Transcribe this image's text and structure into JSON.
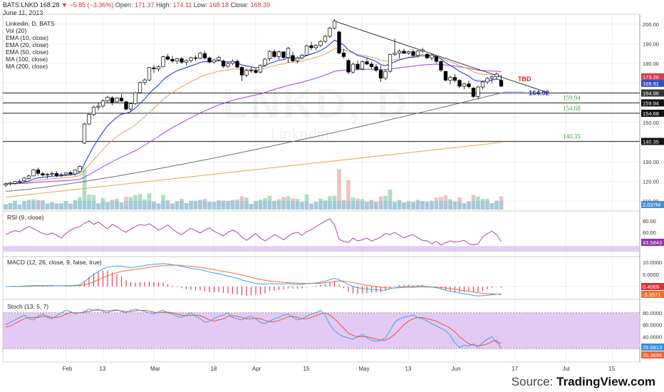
{
  "header": {
    "symbol": "BATS:LNKD",
    "last": "168.28",
    "change": "−5.85 (−3.36%)",
    "open_label": "Open:",
    "open": "171.37",
    "high_label": "High:",
    "high": "174.11",
    "low_label": "Low:",
    "low": "168.18",
    "close_label": "Close:",
    "close": "168.39",
    "date": "June 11, 2013"
  },
  "legend": [
    "Linkedin, D, BATS",
    "Vol (20)",
    "EMA (10, close)",
    "EMA (20, close)",
    "EMA (50, close)",
    "MA (100, close)",
    "MA (200, close)"
  ],
  "watermark": {
    "main": "LNKD, D",
    "sub": "Linkedin"
  },
  "panes": {
    "rsi_title": "RSI (9, close)",
    "macd_title": "MACD (12, 26, close, 9, false, true)",
    "stoch_title": "Stoch (13, 5, 7)"
  },
  "source": {
    "prefix": "Source:",
    "brand": "TradingView.com"
  },
  "colors": {
    "up": "#ffffff",
    "down": "#000000",
    "ema10": "#2040d0",
    "ema20": "#e0a060",
    "ema50": "#a040e0",
    "ma100": "#707070",
    "ma200": "#d8a850",
    "rsi": "#a030a0",
    "macd": "#40a0e0",
    "signal": "#f07040",
    "hist": "#e04060",
    "stoch_k": "#40a0e0",
    "stoch_d": "#f05030",
    "band": "#d8b8f0",
    "tbd": "#e02020"
  },
  "chart_data": {
    "type": "candlestick",
    "x_ticks": [
      "Feb",
      "13",
      "Mar",
      "18",
      "Apr",
      "15",
      "May",
      "13",
      "Jun",
      "17",
      "Jul",
      "15"
    ],
    "price_axis": {
      "ticks": [
        110,
        120,
        130,
        140,
        150,
        160,
        170,
        180,
        190,
        200
      ],
      "range": [
        105,
        205
      ]
    },
    "price_tags": [
      "173.20",
      "169.91",
      "164.96",
      "159.94",
      "154.68",
      "140.35"
    ],
    "horizontal_levels": [
      {
        "value": 164.96,
        "label": ""
      },
      {
        "value": 159.94,
        "label": "159.94"
      },
      {
        "value": 154.68,
        "label": "154.68"
      },
      {
        "value": 140.35,
        "label": "140.35"
      }
    ],
    "target": {
      "value": 164.92,
      "label": "164.92"
    },
    "annotation": "TBD",
    "trendline": [
      201.5,
      165.0
    ],
    "ohlc": [
      [
        118.2,
        119.5,
        117.1,
        118.8
      ],
      [
        118.8,
        119.8,
        117.9,
        119.2
      ],
      [
        119.0,
        120.3,
        118.5,
        119.9
      ],
      [
        119.9,
        121.0,
        119.0,
        120.1
      ],
      [
        120.3,
        122.2,
        119.8,
        121.7
      ],
      [
        121.5,
        123.5,
        121.0,
        122.8
      ],
      [
        122.8,
        126.4,
        122.6,
        125.9
      ],
      [
        125.9,
        127.0,
        123.1,
        124.1
      ],
      [
        124.0,
        125.0,
        122.5,
        123.2
      ],
      [
        123.3,
        124.3,
        121.5,
        123.7
      ],
      [
        123.8,
        125.0,
        122.8,
        124.1
      ],
      [
        124.1,
        125.2,
        122.2,
        123.0
      ],
      [
        123.2,
        124.4,
        122.3,
        123.5
      ],
      [
        123.5,
        124.6,
        122.8,
        124.3
      ],
      [
        124.5,
        125.5,
        123.2,
        123.8
      ],
      [
        123.8,
        126.1,
        123.0,
        125.8
      ],
      [
        125.0,
        128.3,
        124.5,
        127.7
      ],
      [
        139.5,
        149.8,
        139.0,
        149.2
      ],
      [
        149.2,
        154.6,
        148.6,
        154.1
      ],
      [
        154.0,
        158.5,
        153.0,
        157.8
      ],
      [
        157.8,
        160.3,
        156.2,
        158.3
      ],
      [
        158.3,
        161.8,
        157.6,
        161.0
      ],
      [
        161.0,
        163.6,
        160.0,
        162.9
      ],
      [
        162.5,
        163.4,
        158.7,
        160.1
      ],
      [
        160.5,
        162.9,
        159.9,
        162.5
      ],
      [
        162.4,
        164.4,
        160.5,
        160.9
      ],
      [
        160.5,
        161.0,
        156.1,
        156.8
      ],
      [
        156.8,
        160.2,
        155.8,
        159.6
      ],
      [
        159.6,
        165.6,
        159.0,
        165.1
      ],
      [
        165.1,
        170.9,
        164.5,
        170.3
      ],
      [
        170.3,
        172.5,
        169.0,
        171.6
      ],
      [
        171.6,
        178.2,
        171.0,
        177.9
      ],
      [
        177.8,
        179.2,
        175.2,
        177.2
      ],
      [
        177.2,
        179.0,
        175.9,
        178.3
      ],
      [
        178.3,
        184.0,
        178.0,
        183.4
      ],
      [
        183.4,
        184.9,
        181.6,
        182.1
      ],
      [
        182.1,
        183.8,
        180.2,
        181.2
      ],
      [
        181.2,
        182.9,
        179.7,
        182.4
      ],
      [
        182.4,
        183.2,
        179.8,
        180.6
      ],
      [
        180.6,
        182.1,
        179.0,
        181.5
      ],
      [
        181.5,
        183.4,
        180.4,
        182.9
      ],
      [
        182.9,
        184.1,
        181.4,
        182.6
      ],
      [
        182.6,
        185.8,
        182.1,
        185.2
      ],
      [
        185.0,
        186.4,
        182.0,
        182.8
      ],
      [
        182.8,
        183.5,
        180.0,
        180.7
      ],
      [
        180.7,
        182.4,
        179.8,
        181.8
      ],
      [
        181.8,
        183.9,
        181.1,
        183.1
      ],
      [
        181.2,
        182.0,
        177.8,
        178.6
      ],
      [
        178.6,
        180.6,
        177.6,
        180.0
      ],
      [
        180.0,
        182.0,
        179.1,
        181.1
      ],
      [
        181.1,
        182.1,
        177.6,
        178.1
      ],
      [
        178.0,
        178.6,
        171.0,
        174.1
      ],
      [
        174.1,
        177.2,
        173.0,
        176.4
      ],
      [
        176.4,
        178.1,
        175.3,
        176.6
      ],
      [
        176.4,
        177.8,
        174.6,
        175.4
      ],
      [
        175.6,
        179.5,
        175.0,
        179.0
      ],
      [
        179.0,
        182.8,
        178.3,
        182.2
      ],
      [
        182.4,
        186.8,
        181.1,
        186.1
      ],
      [
        186.0,
        187.2,
        182.8,
        183.5
      ],
      [
        183.5,
        186.5,
        182.0,
        185.9
      ],
      [
        185.9,
        186.1,
        182.2,
        183.0
      ],
      [
        183.0,
        188.4,
        180.4,
        187.8
      ],
      [
        184.0,
        185.9,
        180.6,
        181.3
      ],
      [
        181.3,
        183.6,
        180.0,
        182.8
      ],
      [
        182.8,
        184.8,
        182.0,
        184.2
      ],
      [
        184.2,
        189.6,
        183.7,
        189.0
      ],
      [
        189.0,
        191.0,
        186.7,
        188.0
      ],
      [
        188.0,
        189.7,
        186.7,
        189.1
      ],
      [
        189.1,
        191.8,
        188.2,
        191.2
      ],
      [
        191.2,
        194.4,
        190.5,
        193.8
      ],
      [
        193.8,
        198.6,
        193.0,
        198.0
      ],
      [
        198.0,
        202.4,
        197.1,
        201.5
      ],
      [
        196.0,
        196.7,
        184.6,
        185.3
      ],
      [
        185.3,
        187.4,
        182.4,
        183.5
      ],
      [
        181.5,
        182.5,
        174.6,
        175.6
      ],
      [
        175.6,
        180.5,
        174.8,
        179.6
      ],
      [
        179.6,
        181.4,
        176.5,
        177.2
      ],
      [
        177.2,
        181.5,
        176.5,
        180.9
      ],
      [
        180.9,
        182.9,
        179.0,
        179.7
      ],
      [
        179.7,
        180.8,
        177.0,
        178.3
      ],
      [
        178.3,
        179.7,
        175.5,
        176.5
      ],
      [
        176.5,
        179.0,
        170.5,
        172.5
      ],
      [
        172.5,
        176.8,
        171.5,
        176.0
      ],
      [
        176.0,
        185.0,
        175.4,
        184.6
      ],
      [
        184.6,
        192.6,
        183.8,
        185.2
      ],
      [
        185.2,
        187.0,
        182.6,
        186.2
      ],
      [
        186.2,
        187.5,
        184.8,
        185.2
      ],
      [
        185.2,
        186.4,
        184.4,
        186.0
      ],
      [
        186.0,
        187.2,
        183.4,
        184.0
      ],
      [
        184.0,
        186.8,
        183.2,
        186.3
      ],
      [
        186.3,
        188.0,
        185.2,
        186.9
      ],
      [
        184.6,
        185.3,
        182.4,
        182.8
      ],
      [
        182.8,
        185.0,
        181.5,
        184.3
      ],
      [
        183.5,
        183.9,
        180.2,
        181.0
      ],
      [
        181.0,
        181.5,
        175.6,
        176.6
      ],
      [
        176.0,
        176.2,
        170.8,
        171.5
      ],
      [
        171.5,
        173.6,
        169.4,
        172.9
      ],
      [
        172.9,
        174.6,
        170.5,
        171.4
      ],
      [
        171.4,
        172.1,
        167.5,
        168.4
      ],
      [
        168.4,
        170.0,
        166.9,
        169.6
      ],
      [
        169.6,
        171.2,
        167.2,
        168.2
      ],
      [
        167.5,
        167.9,
        162.4,
        163.2
      ],
      [
        163.2,
        168.7,
        161.8,
        168.0
      ],
      [
        168.0,
        171.0,
        166.8,
        170.6
      ],
      [
        170.6,
        173.0,
        169.4,
        172.4
      ],
      [
        172.4,
        173.8,
        170.1,
        173.2
      ],
      [
        173.2,
        175.4,
        171.8,
        174.6
      ],
      [
        171.37,
        174.11,
        168.18,
        168.39
      ]
    ],
    "volume_axis": {
      "tag": "2.037M"
    },
    "rsi": {
      "axis_ticks": [
        80,
        60
      ],
      "tag": "43.5843",
      "band": [
        30,
        70
      ],
      "values": [
        56,
        60,
        63,
        61,
        66,
        70,
        67,
        62,
        58,
        56,
        59,
        55,
        50,
        58,
        64,
        68,
        70,
        76,
        80,
        74,
        78,
        72,
        66,
        74,
        70,
        64,
        60,
        66,
        70,
        74,
        72,
        75,
        70,
        64,
        68,
        73,
        66,
        60,
        56,
        62,
        67,
        63,
        59,
        64,
        68,
        62,
        58,
        54,
        60,
        64,
        60,
        52,
        46,
        52,
        58,
        50,
        45,
        50,
        56,
        52,
        47,
        53,
        58,
        60,
        55,
        61,
        65,
        70,
        75,
        80,
        84,
        73,
        48,
        44,
        42,
        50,
        45,
        47,
        50,
        45,
        48,
        52,
        58,
        56,
        60,
        55,
        50,
        54,
        56,
        50,
        46,
        45,
        40,
        44,
        38,
        42,
        45,
        43,
        44,
        46,
        40,
        38,
        40,
        52,
        58,
        62,
        56,
        44
      ]
    },
    "macd": {
      "axis_ticks": [
        10.0,
        5.0
      ],
      "tags": [
        "0.4069",
        "-3.3571"
      ],
      "macd": [
        0.0,
        0.0,
        0.1,
        0.1,
        0.2,
        0.3,
        0.4,
        0.4,
        0.4,
        0.4,
        0.4,
        0.3,
        0.3,
        0.4,
        0.4,
        0.5,
        0.7,
        2.0,
        3.5,
        5.0,
        6.2,
        7.2,
        8.0,
        8.3,
        8.5,
        8.4,
        8.0,
        7.8,
        8.0,
        8.3,
        8.6,
        9.0,
        9.2,
        9.3,
        9.5,
        9.3,
        9.0,
        8.7,
        8.3,
        7.9,
        7.6,
        7.2,
        7.0,
        6.5,
        6.0,
        5.6,
        5.3,
        4.8,
        4.3,
        3.9,
        3.4,
        2.7,
        2.2,
        1.8,
        1.3,
        1.1,
        1.0,
        1.2,
        1.1,
        1.1,
        1.0,
        1.2,
        1.0,
        0.9,
        0.9,
        1.2,
        1.3,
        1.5,
        1.8,
        2.2,
        2.8,
        3.4,
        2.8,
        1.8,
        0.8,
        0.0,
        -0.5,
        -0.8,
        -1.0,
        -1.2,
        -1.3,
        -1.6,
        -1.5,
        -0.9,
        -0.5,
        -0.2,
        0.0,
        0.1,
        0.0,
        0.1,
        0.2,
        -0.1,
        -0.2,
        -0.5,
        -1.0,
        -1.5,
        -2.0,
        -2.3,
        -2.7,
        -3.0,
        -3.2,
        -3.7,
        -3.9,
        -3.8,
        -3.6,
        -3.4,
        -3.1,
        -3.36
      ],
      "signal": [
        0.0,
        0.0,
        0.0,
        0.0,
        0.1,
        0.1,
        0.2,
        0.2,
        0.3,
        0.3,
        0.3,
        0.3,
        0.3,
        0.3,
        0.3,
        0.4,
        0.4,
        0.7,
        1.2,
        1.9,
        2.8,
        3.6,
        4.4,
        5.1,
        5.7,
        6.2,
        6.6,
        6.8,
        7.1,
        7.3,
        7.6,
        7.9,
        8.2,
        8.4,
        8.6,
        8.8,
        8.8,
        8.8,
        8.7,
        8.5,
        8.4,
        8.1,
        7.9,
        7.6,
        7.3,
        7.0,
        6.6,
        6.3,
        5.9,
        5.6,
        5.2,
        4.7,
        4.3,
        3.8,
        3.3,
        2.9,
        2.6,
        2.3,
        2.1,
        1.9,
        1.7,
        1.6,
        1.5,
        1.4,
        1.3,
        1.3,
        1.3,
        1.3,
        1.4,
        1.6,
        1.8,
        2.1,
        2.3,
        2.2,
        2.0,
        1.6,
        1.2,
        0.8,
        0.5,
        0.2,
        0.0,
        -0.3,
        -0.5,
        -0.6,
        -0.6,
        -0.5,
        -0.4,
        -0.3,
        -0.3,
        -0.2,
        -0.2,
        -0.2,
        -0.2,
        -0.3,
        -0.4,
        -0.6,
        -0.9,
        -1.1,
        -1.4,
        -1.7,
        -2.0,
        -2.3,
        -2.6,
        -2.8,
        -3.0,
        -3.1,
        -3.1,
        -3.1
      ]
    },
    "stoch": {
      "axis_ticks": [
        80.0,
        60.0,
        40.0
      ],
      "tags": [
        "29.6813",
        "20.3696"
      ],
      "band": [
        20,
        80
      ],
      "k": [
        60,
        64,
        68,
        72,
        76,
        70,
        68,
        74,
        78,
        72,
        70,
        75,
        80,
        84,
        82,
        78,
        80,
        82,
        86,
        84,
        86,
        82,
        80,
        84,
        85,
        82,
        80,
        84,
        86,
        84,
        82,
        80,
        78,
        82,
        84,
        80,
        78,
        74,
        72,
        76,
        80,
        74,
        70,
        64,
        66,
        70,
        74,
        76,
        80,
        72,
        70,
        68,
        72,
        74,
        70,
        64,
        62,
        66,
        70,
        72,
        76,
        78,
        72,
        68,
        70,
        74,
        78,
        80,
        84,
        76,
        60,
        50,
        44,
        40,
        38,
        36,
        40,
        44,
        38,
        34,
        32,
        34,
        38,
        50,
        64,
        70,
        72,
        74,
        76,
        72,
        70,
        66,
        62,
        58,
        54,
        50,
        42,
        30,
        22,
        26,
        24,
        28,
        22,
        30,
        36,
        40,
        30,
        29.7
      ],
      "d": [
        56,
        58,
        62,
        66,
        70,
        72,
        72,
        72,
        74,
        74,
        72,
        72,
        74,
        78,
        80,
        80,
        80,
        81,
        82,
        84,
        84,
        84,
        83,
        83,
        84,
        83,
        82,
        82,
        83,
        84,
        84,
        83,
        81,
        80,
        81,
        81,
        80,
        78,
        76,
        75,
        76,
        76,
        75,
        72,
        68,
        66,
        68,
        70,
        74,
        75,
        74,
        72,
        70,
        70,
        71,
        70,
        67,
        65,
        65,
        67,
        70,
        73,
        74,
        72,
        70,
        70,
        72,
        75,
        78,
        80,
        76,
        70,
        62,
        54,
        46,
        42,
        40,
        40,
        40,
        38,
        36,
        34,
        34,
        38,
        44,
        52,
        60,
        66,
        70,
        72,
        72,
        70,
        68,
        66,
        62,
        58,
        54,
        48,
        40,
        34,
        28,
        26,
        25,
        26,
        28,
        32,
        34,
        20.4
      ]
    }
  }
}
